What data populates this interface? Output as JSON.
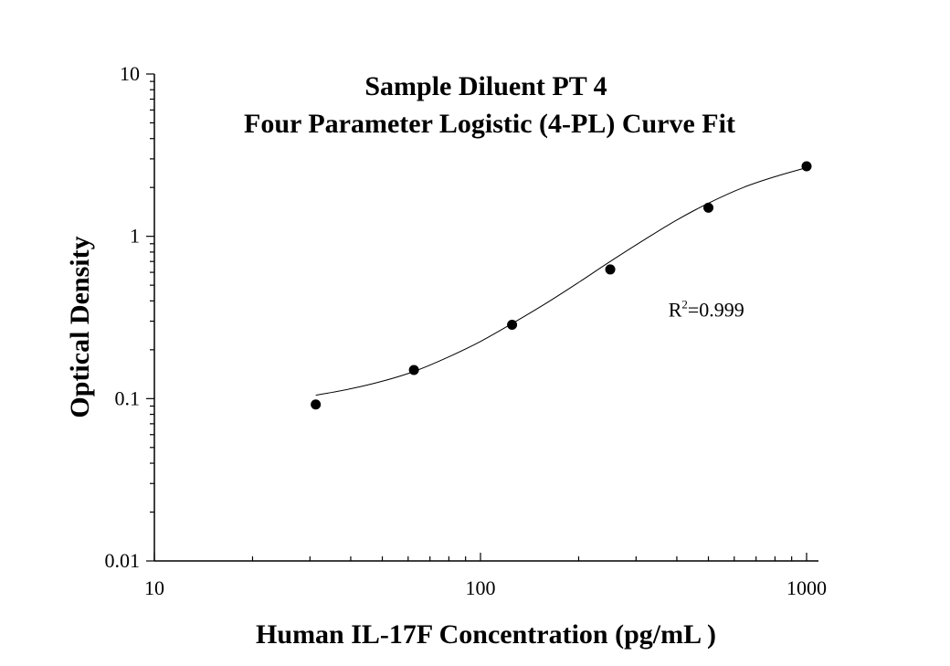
{
  "chart_data": {
    "type": "scatter",
    "title": [
      "Sample Diluent PT 4",
      "Four Parameter Logistic (4-PL) Curve Fit"
    ],
    "xlabel": "Human IL-17F Concentration (pg/mL )",
    "ylabel": "Optical Density",
    "xscale": "log",
    "yscale": "log",
    "xlim": [
      10,
      1000
    ],
    "ylim": [
      0.01,
      10
    ],
    "x_ticks": [
      10,
      100,
      1000
    ],
    "x_tick_labels": [
      "10",
      "100",
      "1000"
    ],
    "y_ticks": [
      0.01,
      0.1,
      1,
      10
    ],
    "y_tick_labels": [
      "0.01",
      "0.1",
      "1",
      "10"
    ],
    "grid": false,
    "series": [
      {
        "x": [
          31.25,
          62.5,
          125,
          250,
          500,
          1000
        ],
        "y": [
          0.092,
          0.15,
          0.285,
          0.625,
          1.5,
          2.7
        ]
      }
    ],
    "fit": {
      "model": "4-PL",
      "x": [
        31.25,
        40,
        50,
        62.5,
        80,
        100,
        125,
        160,
        200,
        250,
        320,
        400,
        500,
        640,
        800,
        1000
      ],
      "y": [
        0.105,
        0.115,
        0.128,
        0.147,
        0.181,
        0.225,
        0.29,
        0.39,
        0.52,
        0.7,
        0.96,
        1.26,
        1.6,
        2.0,
        2.33,
        2.65
      ]
    },
    "annotation": {
      "base": "R",
      "sup": "2",
      "rest": "=0.999",
      "at_data": [
        700,
        0.32
      ]
    },
    "colors": {
      "points": "#000000",
      "line": "#000000",
      "axis": "#000000"
    }
  }
}
